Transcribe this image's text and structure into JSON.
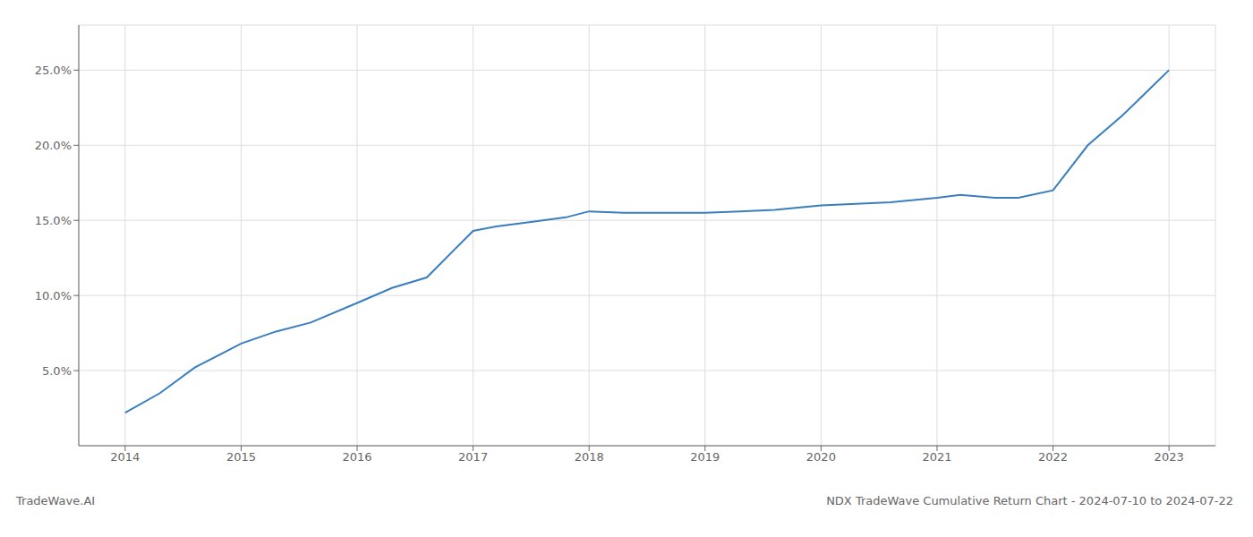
{
  "chart_data": {
    "type": "line",
    "title": "NDX TradeWave Cumulative Return Chart - 2024-07-10 to 2024-07-22",
    "annotations": [
      "TradeWave.AI"
    ],
    "x": [
      2014.0,
      2014.3,
      2014.6,
      2015.0,
      2015.3,
      2015.6,
      2016.0,
      2016.3,
      2016.6,
      2017.0,
      2017.2,
      2017.5,
      2017.8,
      2018.0,
      2018.3,
      2018.6,
      2019.0,
      2019.3,
      2019.6,
      2020.0,
      2020.3,
      2020.6,
      2021.0,
      2021.2,
      2021.5,
      2021.7,
      2022.0,
      2022.3,
      2022.6,
      2023.0
    ],
    "values": [
      0.022,
      0.035,
      0.052,
      0.068,
      0.076,
      0.082,
      0.095,
      0.105,
      0.112,
      0.143,
      0.146,
      0.149,
      0.152,
      0.156,
      0.155,
      0.155,
      0.155,
      0.156,
      0.157,
      0.16,
      0.161,
      0.162,
      0.165,
      0.167,
      0.165,
      0.165,
      0.17,
      0.2,
      0.22,
      0.25
    ],
    "color": "#3a7ebf",
    "xlim": [
      2013.6,
      2023.4
    ],
    "ylim": [
      0.0,
      0.28
    ],
    "xticks": [
      2014,
      2015,
      2016,
      2017,
      2018,
      2019,
      2020,
      2021,
      2022,
      2023
    ],
    "yticks": [
      {
        "value": 0.05,
        "label": "5.0%"
      },
      {
        "value": 0.1,
        "label": "10.0%"
      },
      {
        "value": 0.15,
        "label": "15.0%"
      },
      {
        "value": 0.2,
        "label": "20.0%"
      },
      {
        "value": 0.25,
        "label": "25.0%"
      }
    ],
    "grid": true
  }
}
